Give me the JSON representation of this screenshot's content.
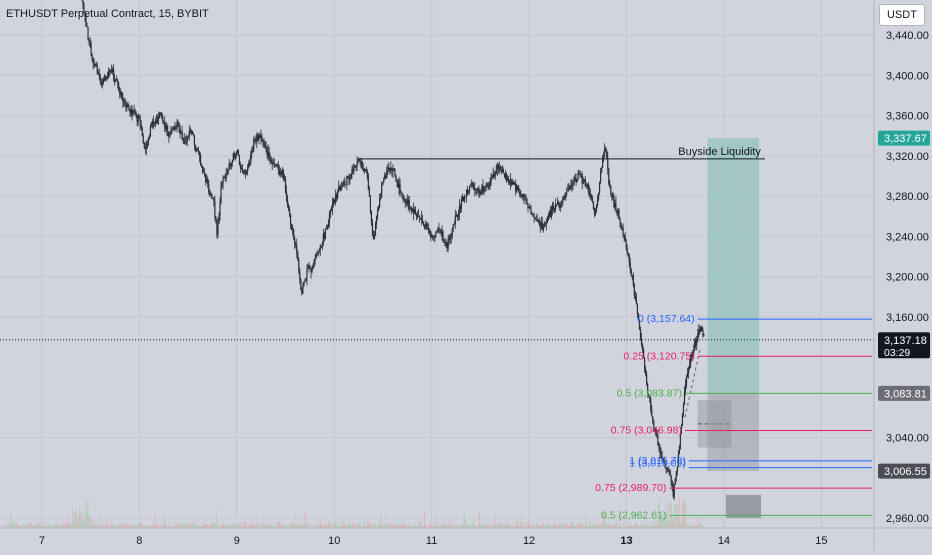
{
  "header": {
    "symbol_title": "ETHUSDT Perpetual Contract, 15, BYBIT",
    "currency_button": "USDT"
  },
  "colors": {
    "background": "#d1d4dc",
    "candle": "#2a2e39",
    "target_zone": "#9dc7c0",
    "stop_zone": "#8f929b",
    "fib_blue": "#2962ff",
    "fib_red": "#e91e63",
    "fib_green": "#4caf50",
    "last_price_bg": "#131722",
    "target_label_bg": "#26a69a"
  },
  "chart_data": {
    "type": "line",
    "style": "candlestick",
    "title": "ETHUSDT Perpetual Contract, 15, BYBIT",
    "xlabel": "",
    "ylabel": "",
    "ylim": [
      2950,
      3475
    ],
    "xlim": [
      6.57,
      15.54
    ],
    "grid": true,
    "x_ticks": [
      {
        "value": 7,
        "label": "7",
        "bold": false
      },
      {
        "value": 8,
        "label": "8",
        "bold": false
      },
      {
        "value": 9,
        "label": "9",
        "bold": false
      },
      {
        "value": 10,
        "label": "10",
        "bold": false
      },
      {
        "value": 11,
        "label": "11",
        "bold": false
      },
      {
        "value": 12,
        "label": "12",
        "bold": false
      },
      {
        "value": 13,
        "label": "13",
        "bold": true
      },
      {
        "value": 14,
        "label": "14",
        "bold": false
      },
      {
        "value": 15,
        "label": "15",
        "bold": false
      }
    ],
    "y_ticks": [
      {
        "value": 3440,
        "label": "3,440.00"
      },
      {
        "value": 3400,
        "label": "3,400.00"
      },
      {
        "value": 3360,
        "label": "3,360.00"
      },
      {
        "value": 3320,
        "label": "3,320.00"
      },
      {
        "value": 3280,
        "label": "3,280.00"
      },
      {
        "value": 3240,
        "label": "3,240.00"
      },
      {
        "value": 3200,
        "label": "3,200.00"
      },
      {
        "value": 3160,
        "label": "3,160.00"
      },
      {
        "value": 3040,
        "label": "3,040.00"
      },
      {
        "value": 2960,
        "label": "2,960.00"
      }
    ],
    "price_path": [
      [
        7.4,
        3480
      ],
      [
        7.46,
        3445
      ],
      [
        7.52,
        3415
      ],
      [
        7.62,
        3392
      ],
      [
        7.72,
        3405
      ],
      [
        7.82,
        3378
      ],
      [
        7.92,
        3365
      ],
      [
        8.0,
        3355
      ],
      [
        8.06,
        3325
      ],
      [
        8.12,
        3350
      ],
      [
        8.22,
        3362
      ],
      [
        8.3,
        3340
      ],
      [
        8.38,
        3352
      ],
      [
        8.46,
        3335
      ],
      [
        8.54,
        3345
      ],
      [
        8.62,
        3315
      ],
      [
        8.7,
        3290
      ],
      [
        8.76,
        3275
      ],
      [
        8.8,
        3240
      ],
      [
        8.84,
        3290
      ],
      [
        8.92,
        3310
      ],
      [
        9.0,
        3325
      ],
      [
        9.06,
        3300
      ],
      [
        9.12,
        3310
      ],
      [
        9.18,
        3335
      ],
      [
        9.24,
        3340
      ],
      [
        9.32,
        3320
      ],
      [
        9.4,
        3310
      ],
      [
        9.48,
        3300
      ],
      [
        9.56,
        3250
      ],
      [
        9.62,
        3225
      ],
      [
        9.66,
        3182
      ],
      [
        9.72,
        3205
      ],
      [
        9.8,
        3215
      ],
      [
        9.88,
        3235
      ],
      [
        9.96,
        3262
      ],
      [
        10.06,
        3290
      ],
      [
        10.16,
        3300
      ],
      [
        10.26,
        3315
      ],
      [
        10.34,
        3300
      ],
      [
        10.4,
        3235
      ],
      [
        10.44,
        3265
      ],
      [
        10.52,
        3300
      ],
      [
        10.6,
        3310
      ],
      [
        10.68,
        3282
      ],
      [
        10.76,
        3272
      ],
      [
        10.84,
        3262
      ],
      [
        10.92,
        3252
      ],
      [
        11.0,
        3240
      ],
      [
        11.08,
        3247
      ],
      [
        11.16,
        3230
      ],
      [
        11.22,
        3250
      ],
      [
        11.3,
        3272
      ],
      [
        11.4,
        3290
      ],
      [
        11.5,
        3285
      ],
      [
        11.6,
        3292
      ],
      [
        11.68,
        3310
      ],
      [
        11.76,
        3298
      ],
      [
        11.84,
        3290
      ],
      [
        11.94,
        3280
      ],
      [
        12.04,
        3262
      ],
      [
        12.14,
        3250
      ],
      [
        12.24,
        3267
      ],
      [
        12.34,
        3275
      ],
      [
        12.44,
        3295
      ],
      [
        12.52,
        3300
      ],
      [
        12.62,
        3285
      ],
      [
        12.68,
        3262
      ],
      [
        12.74,
        3305
      ],
      [
        12.78,
        3330
      ],
      [
        12.82,
        3290
      ],
      [
        12.9,
        3265
      ],
      [
        12.98,
        3240
      ],
      [
        13.04,
        3210
      ],
      [
        13.1,
        3170
      ],
      [
        13.16,
        3130
      ],
      [
        13.22,
        3085
      ],
      [
        13.28,
        3050
      ],
      [
        13.34,
        3028
      ],
      [
        13.4,
        3010
      ],
      [
        13.44,
        3005
      ],
      [
        13.48,
        2985
      ],
      [
        13.52,
        3010
      ],
      [
        13.56,
        3050
      ],
      [
        13.6,
        3090
      ],
      [
        13.66,
        3120
      ],
      [
        13.72,
        3140
      ],
      [
        13.76,
        3150
      ],
      [
        13.8,
        3137.18
      ]
    ],
    "levels": [
      {
        "ratio": "0",
        "price": 3157.64,
        "label": "0 (3,157.64)",
        "color": "#2962ff"
      },
      {
        "ratio": "0.25",
        "price": 3120.75,
        "label": "0.25 (3,120.75)",
        "color": "#e91e63"
      },
      {
        "ratio": "0.5",
        "price": 3083.87,
        "label": "0.5 (3,083.87)",
        "color": "#4caf50"
      },
      {
        "ratio": "0.75",
        "price": 3046.98,
        "label": "0.75 (3,046.98)",
        "color": "#e91e63"
      },
      {
        "ratio": "1",
        "price": 3016.78,
        "label": "1 (3,016.78)",
        "color": "#2962ff"
      },
      {
        "ratio": "1",
        "price": 3010.09,
        "label": "1 (3,010.09)",
        "color": "#2962ff"
      },
      {
        "ratio": "0.75",
        "price": 2989.7,
        "label": "0.75 (2,989.70)",
        "color": "#e91e63"
      },
      {
        "ratio": "0.5",
        "price": 2962.61,
        "label": "0.5 (2,962.61)",
        "color": "#4caf50"
      }
    ],
    "buyside_liquidity": {
      "price": 3317,
      "from_x": 10.25,
      "to_x": 14.42,
      "label": "Buyside Liquidity"
    },
    "target_zone": {
      "x0": 13.83,
      "x1": 14.36,
      "top": 3337.67,
      "bottom": 3083.81
    },
    "stop_zone": {
      "x0": 13.83,
      "x1": 14.36,
      "top": 3083.81,
      "bottom": 3006.55
    },
    "order_block_upper": {
      "x0": 13.73,
      "x1": 14.08,
      "top": 3077,
      "bottom": 3030
    },
    "order_block_lower": {
      "x0": 14.02,
      "x1": 14.38,
      "top": 2983,
      "bottom": 2960
    },
    "price_labels": [
      {
        "value": 3337.67,
        "label": "3,337.67",
        "kind": "target"
      },
      {
        "value": 3137.18,
        "label": "3,137.18",
        "kind": "last",
        "countdown": "03:29"
      },
      {
        "value": 3083.81,
        "label": "3,083.81",
        "kind": "entry"
      },
      {
        "value": 3006.55,
        "label": "3,006.55",
        "kind": "stop"
      }
    ],
    "last_price": 3137.18
  }
}
